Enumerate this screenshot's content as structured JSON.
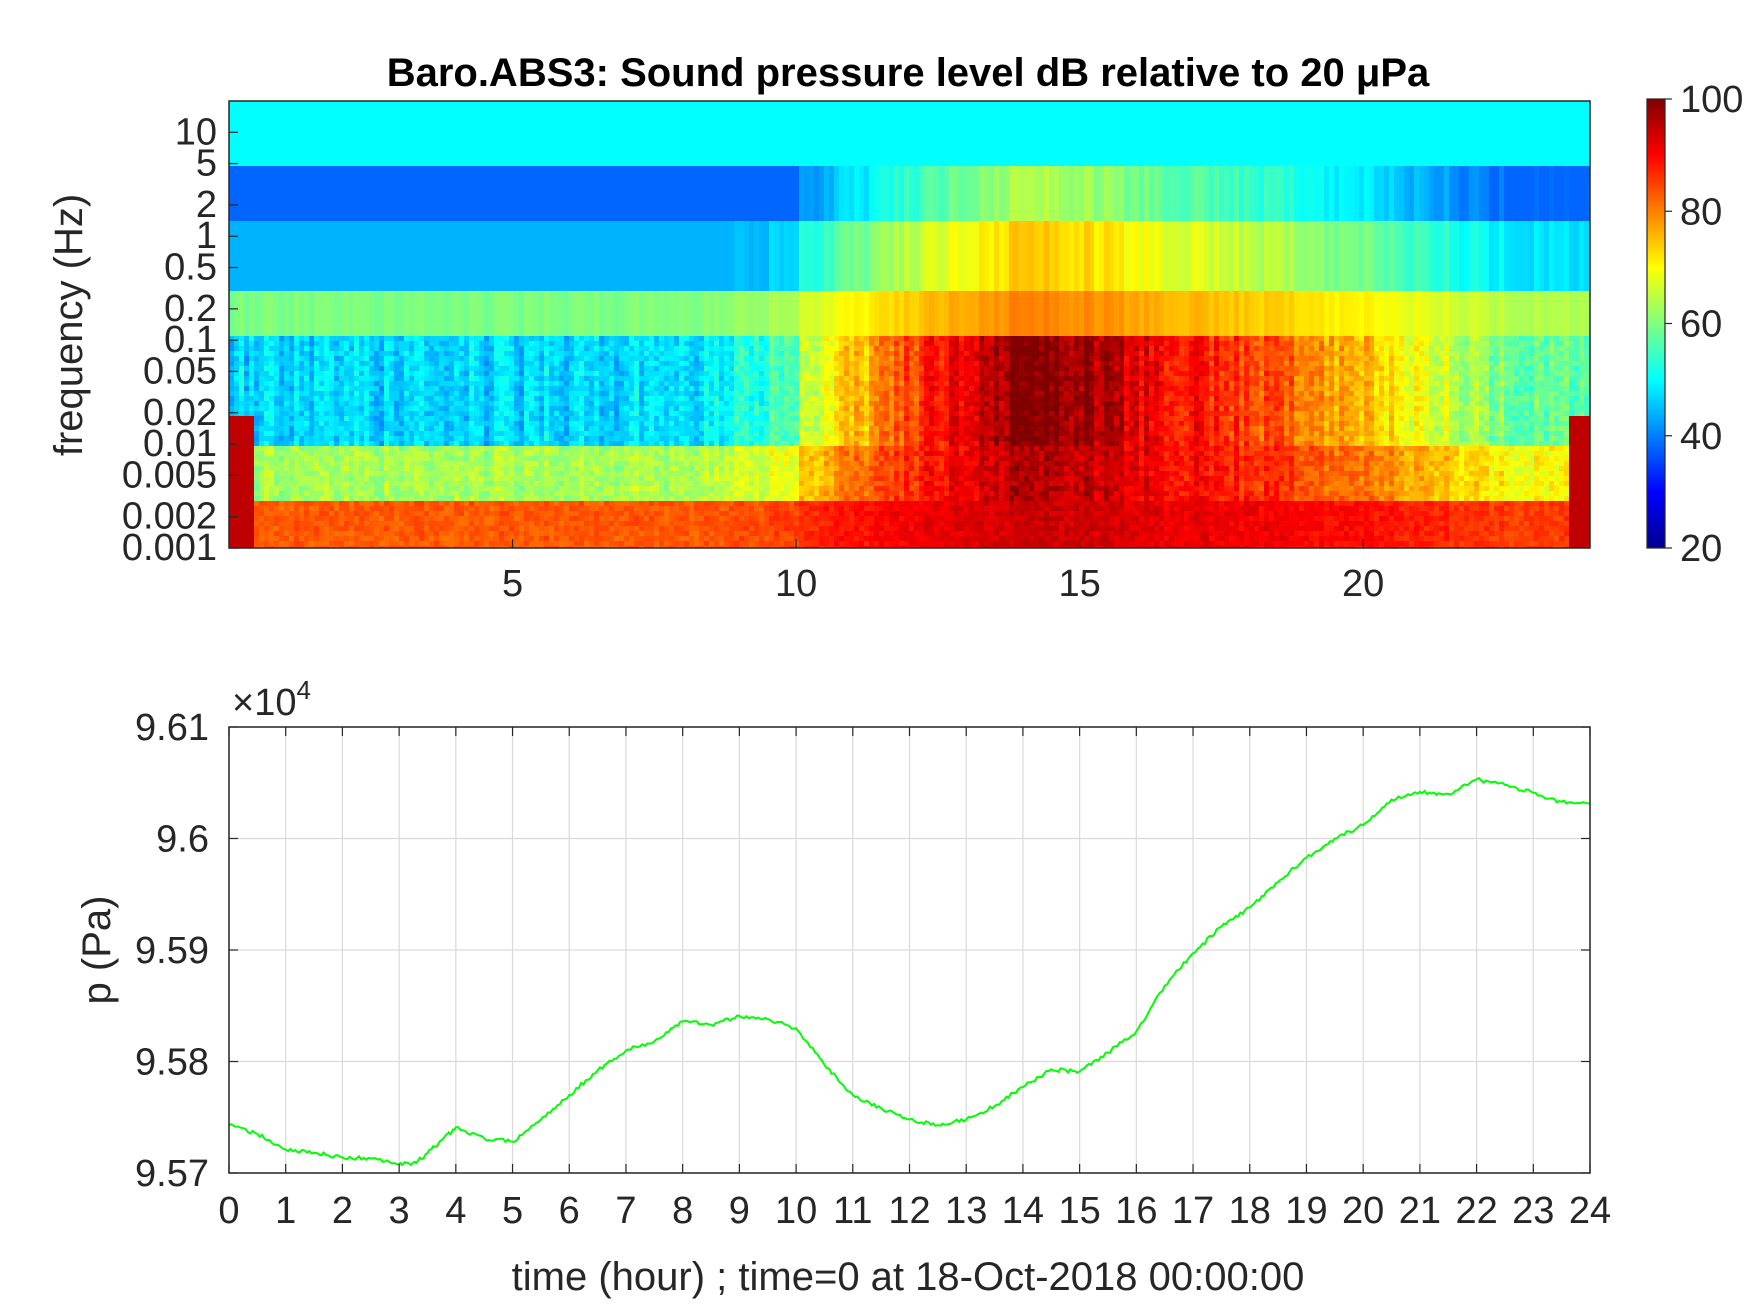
{
  "chart_data": [
    {
      "type": "heatmap",
      "title": "Baro.ABS3: Sound pressure level dB relative to 20 μPa",
      "ylabel": "frequency (Hz)",
      "xlabel": "",
      "x_ticks": [
        5,
        10,
        15,
        20
      ],
      "xlim": [
        0,
        24
      ],
      "y_scale": "log",
      "y_ticks": [
        10,
        5,
        2,
        1,
        0.5,
        0.2,
        0.1,
        0.05,
        0.02,
        0.01,
        0.005,
        0.002,
        0.001
      ],
      "y_tick_labels": [
        "10",
        "5",
        "2",
        "1",
        "0.5",
        "0.2",
        "0.1",
        "0.05",
        "0.02",
        "0.01",
        "0.005",
        "0.002",
        "0.001"
      ],
      "ylim": [
        0.001,
        20
      ],
      "colorbar": {
        "ticks": [
          100,
          80,
          60,
          40,
          20
        ],
        "range": [
          20,
          100
        ],
        "colormap": "jet"
      },
      "grid": false
    },
    {
      "type": "line",
      "xlabel": "time (hour) ; time=0 at 18-Oct-2018 00:00:00",
      "ylabel": "p (Pa)",
      "y_multiplier": "×10",
      "y_multiplier_exponent": "4",
      "y_ticks": [
        9.61,
        9.6,
        9.59,
        9.58,
        9.57
      ],
      "y_tick_labels": [
        "9.61",
        "9.6",
        "9.59",
        "9.58",
        "9.57"
      ],
      "ylim": [
        9.57,
        9.61
      ],
      "x_ticks": [
        0,
        1,
        2,
        3,
        4,
        5,
        6,
        7,
        8,
        9,
        10,
        11,
        12,
        13,
        14,
        15,
        16,
        17,
        18,
        19,
        20,
        21,
        22,
        23,
        24
      ],
      "xlim": [
        0,
        24
      ],
      "grid": true,
      "line_color": "#00ff00",
      "series": [
        {
          "x": [
            0,
            0.5,
            1,
            1.5,
            2,
            2.5,
            3,
            3.3,
            3.7,
            4,
            4.5,
            5,
            5.5,
            6,
            6.5,
            7,
            7.5,
            8,
            8.5,
            9,
            9.5,
            10,
            10.5,
            11,
            11.5,
            12,
            12.5,
            13,
            13.5,
            14,
            14.5,
            15,
            15.5,
            16,
            16.5,
            17,
            17.5,
            18,
            18.5,
            19,
            19.5,
            20,
            20.5,
            21,
            21.5,
            22,
            22.5,
            23,
            23.5,
            24
          ],
          "values": [
            9.5743,
            9.5735,
            9.5721,
            9.5718,
            9.5714,
            9.5713,
            9.5708,
            9.5709,
            9.5727,
            9.5741,
            9.5731,
            9.5728,
            9.5748,
            9.577,
            9.5792,
            9.581,
            9.5818,
            9.5836,
            9.5833,
            9.5841,
            9.5838,
            9.583,
            9.5797,
            9.577,
            9.5758,
            9.5748,
            9.5743,
            9.5748,
            9.576,
            9.5777,
            9.5793,
            9.5791,
            9.5808,
            9.5827,
            9.5868,
            9.5897,
            9.5921,
            9.5938,
            9.5961,
            9.5983,
            9.6,
            9.6012,
            9.6035,
            9.6042,
            9.604,
            9.6053,
            9.6048,
            9.6041,
            9.6033,
            9.6031
          ]
        }
      ]
    }
  ]
}
